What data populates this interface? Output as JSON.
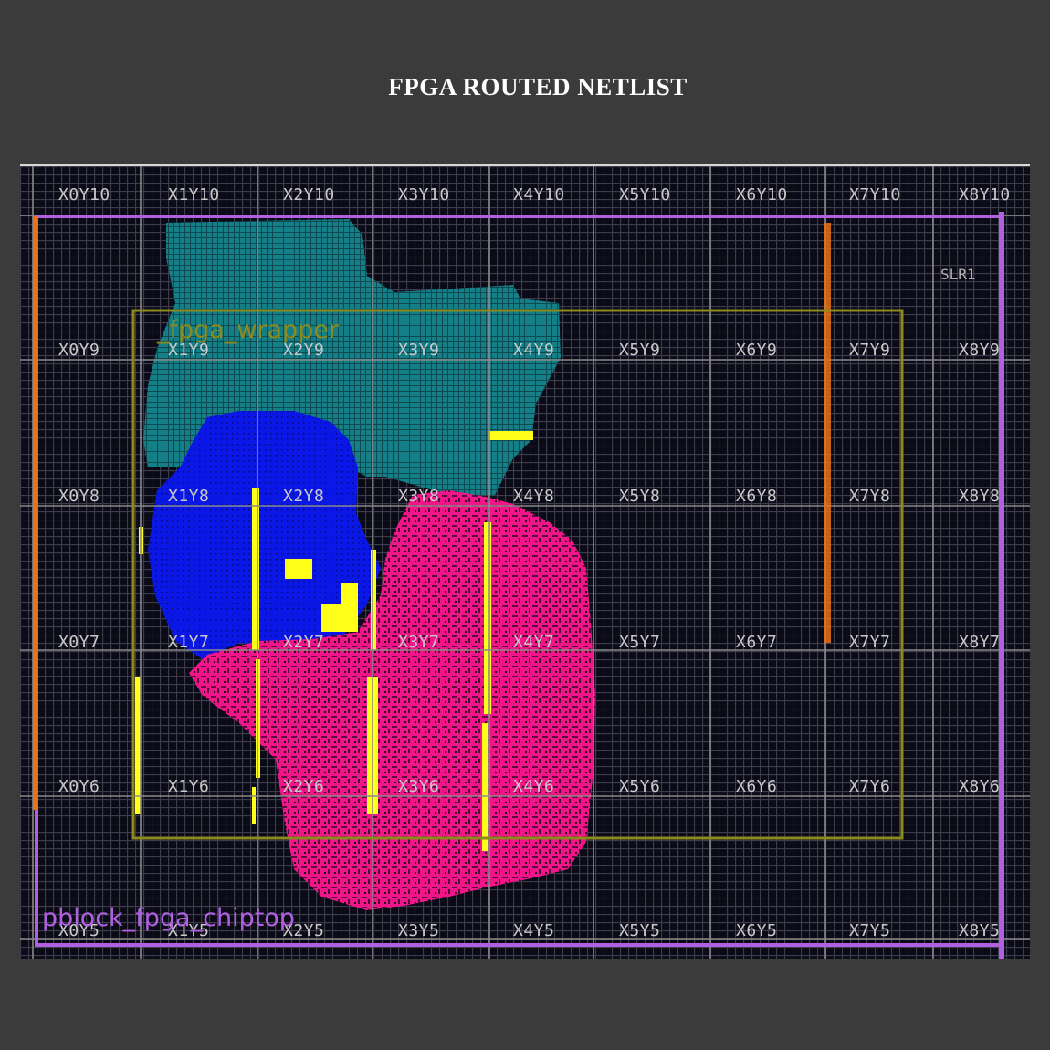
{
  "title": "FPGA ROUTED NETLIST",
  "device_view": {
    "slr_label": "SLR1",
    "clock_regions": [
      "X0Y10",
      "X1Y10",
      "X2Y10",
      "X3Y10",
      "X4Y10",
      "X5Y10",
      "X6Y10",
      "X7Y10",
      "X8Y10",
      "X0Y9",
      "X1Y9",
      "X2Y9",
      "X3Y9",
      "X4Y9",
      "X5Y9",
      "X6Y9",
      "X7Y9",
      "X8Y9",
      "X0Y8",
      "X1Y8",
      "X2Y8",
      "X3Y8",
      "X4Y8",
      "X5Y8",
      "X6Y8",
      "X7Y8",
      "X8Y8",
      "X0Y7",
      "X1Y7",
      "X2Y7",
      "X3Y7",
      "X4Y7",
      "X5Y7",
      "X6Y7",
      "X7Y7",
      "X8Y7",
      "X0Y6",
      "X1Y6",
      "X2Y6",
      "X3Y6",
      "X4Y6",
      "X5Y6",
      "X6Y6",
      "X7Y6",
      "X8Y6",
      "X0Y5",
      "X1Y5",
      "X2Y5",
      "X3Y5",
      "X4Y5",
      "X5Y5",
      "X6Y5",
      "X7Y5",
      "X8Y5"
    ],
    "pblocks": [
      {
        "name": "pblock_fpga_chiptop",
        "color": "#b060e0"
      },
      {
        "name": "_fpga_wrapper",
        "color": "#8c8a1c"
      }
    ],
    "placed_modules": [
      {
        "name": "teal-module",
        "color": "#1c8f99"
      },
      {
        "name": "blue-module",
        "color": "#0a17e6"
      },
      {
        "name": "magenta-module",
        "color": "#f0168a"
      },
      {
        "name": "yellow-nets",
        "color": "#ffff1a"
      }
    ]
  }
}
